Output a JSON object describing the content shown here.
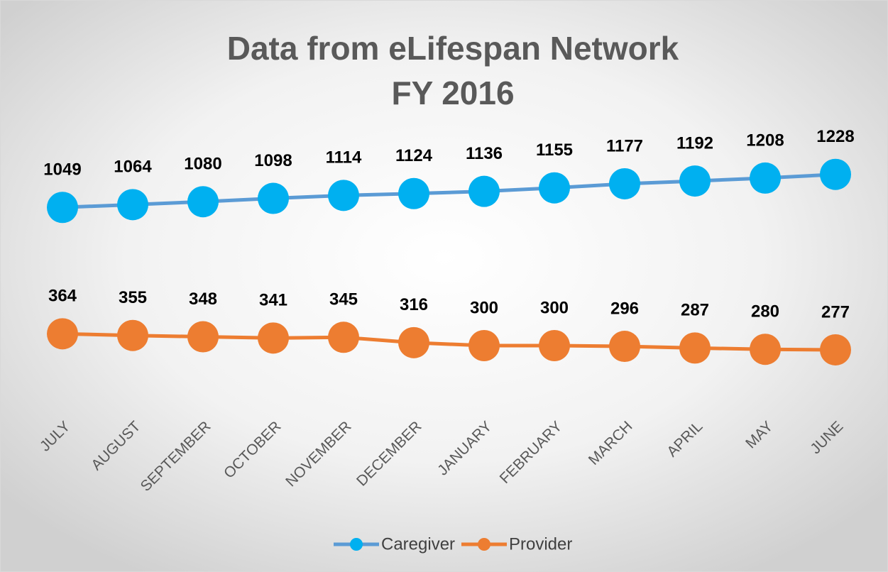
{
  "chart_data": {
    "type": "line",
    "title": [
      "Data from eLifespan Network",
      "FY 2016"
    ],
    "categories": [
      "JULY",
      "AUGUST",
      "SEPTEMBER",
      "OCTOBER",
      "NOVEMBER",
      "DECEMBER",
      "JANUARY",
      "FEBRUARY",
      "MARCH",
      "APRIL",
      "MAY",
      "JUNE"
    ],
    "series": [
      {
        "name": "Caregiver",
        "color": "#00b0f0",
        "line_color": "#5b9bd5",
        "values": [
          1049,
          1064,
          1080,
          1098,
          1114,
          1124,
          1136,
          1155,
          1177,
          1192,
          1208,
          1228
        ]
      },
      {
        "name": "Provider",
        "color": "#ed7d31",
        "line_color": "#ed7d31",
        "values": [
          364,
          355,
          348,
          341,
          345,
          316,
          300,
          300,
          296,
          287,
          280,
          277
        ]
      }
    ],
    "ylim": [
      0,
      1400
    ],
    "legend": "bottom"
  }
}
